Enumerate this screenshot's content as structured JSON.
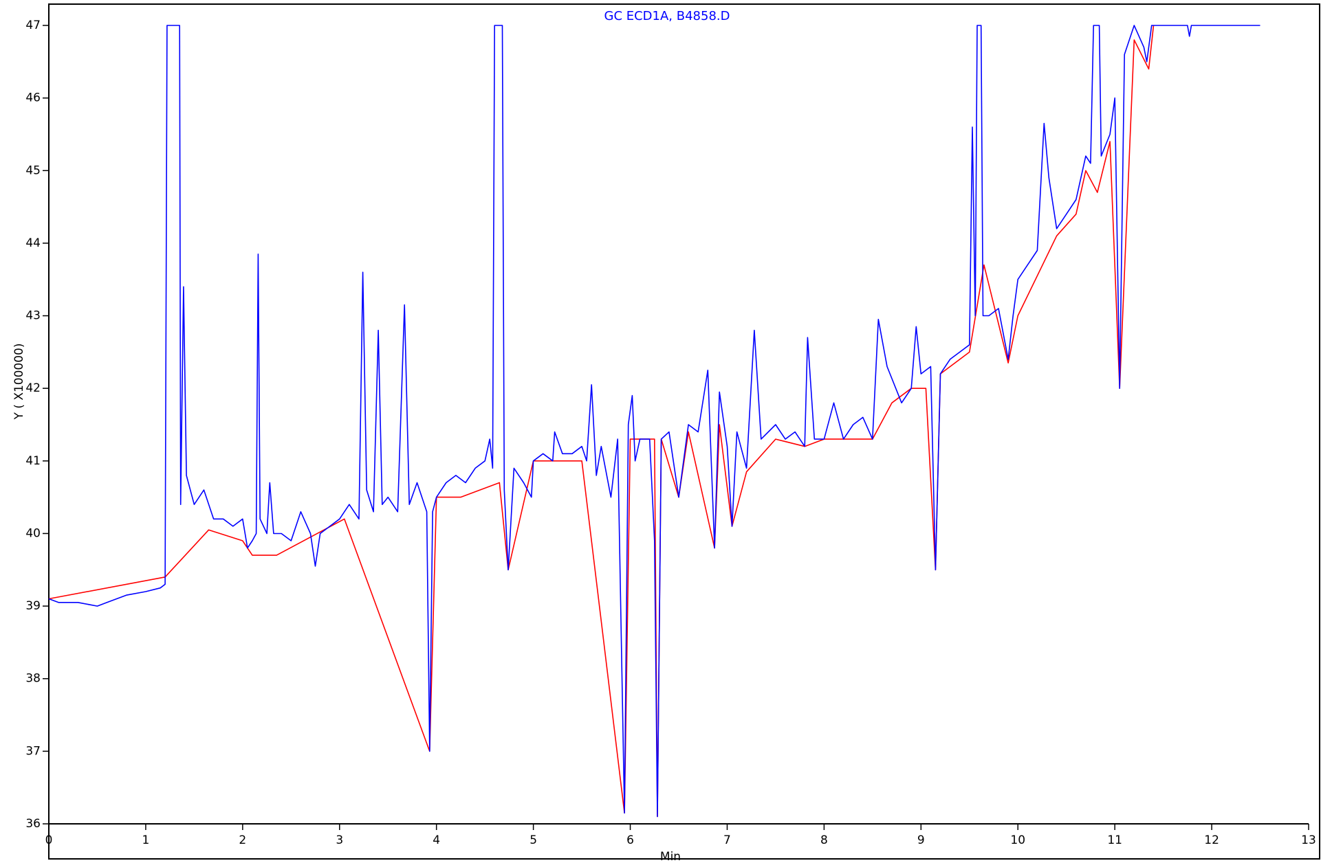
{
  "chart_data": {
    "type": "line",
    "title": "GC ECD1A, B4858.D",
    "x_label": "Min",
    "y_label": "Y ( X100000)",
    "xlim": [
      0,
      13
    ],
    "ylim": [
      36,
      47
    ],
    "xticks": [
      0,
      1,
      2,
      3,
      4,
      5,
      6,
      7,
      8,
      9,
      10,
      11,
      12,
      13
    ],
    "yticks": [
      36,
      37,
      38,
      39,
      40,
      41,
      42,
      43,
      44,
      45,
      46,
      47
    ],
    "series": [
      {
        "color": "#ff0000",
        "x": [
          0,
          1.2,
          1.65,
          2.0,
          2.1,
          2.35,
          3.05,
          3.93,
          4.0,
          4.25,
          4.65,
          4.74,
          5.0,
          5.5,
          5.94,
          6.0,
          6.25,
          6.28,
          6.32,
          6.5,
          6.6,
          6.87,
          6.92,
          7.05,
          7.2,
          7.5,
          7.8,
          8.0,
          8.5,
          8.7,
          8.9,
          9.05,
          9.15,
          9.2,
          9.5,
          9.65,
          9.9,
          10.0,
          10.4,
          10.6,
          10.7,
          10.82,
          10.95,
          11.05,
          11.2,
          11.35,
          11.4
        ],
        "values": [
          39.1,
          39.4,
          40.05,
          39.9,
          39.7,
          39.7,
          40.2,
          37.0,
          40.5,
          40.5,
          40.7,
          39.5,
          41.0,
          41.0,
          36.15,
          41.3,
          41.3,
          36.1,
          41.3,
          40.5,
          41.4,
          39.8,
          41.5,
          40.1,
          40.85,
          41.3,
          41.2,
          41.3,
          41.3,
          41.8,
          42.0,
          42.0,
          39.5,
          42.2,
          42.5,
          43.7,
          42.35,
          43.0,
          44.1,
          44.4,
          45.0,
          44.7,
          45.4,
          42.0,
          46.8,
          46.4,
          47
        ]
      },
      {
        "color": "#0000ff",
        "x": [
          0,
          0.1,
          0.3,
          0.5,
          0.6,
          0.8,
          1.0,
          1.15,
          1.2,
          1.22,
          1.35,
          1.36,
          1.39,
          1.42,
          1.5,
          1.6,
          1.7,
          1.8,
          1.9,
          2.0,
          2.05,
          2.1,
          2.14,
          2.16,
          2.18,
          2.25,
          2.28,
          2.32,
          2.4,
          2.5,
          2.6,
          2.7,
          2.75,
          2.8,
          2.9,
          3.0,
          3.1,
          3.2,
          3.24,
          3.28,
          3.35,
          3.4,
          3.44,
          3.5,
          3.6,
          3.67,
          3.72,
          3.8,
          3.9,
          3.93,
          3.96,
          4.0,
          4.1,
          4.2,
          4.3,
          4.4,
          4.5,
          4.55,
          4.58,
          4.6,
          4.68,
          4.7,
          4.74,
          4.8,
          4.9,
          4.98,
          5.0,
          5.1,
          5.2,
          5.22,
          5.3,
          5.4,
          5.5,
          5.55,
          5.6,
          5.65,
          5.7,
          5.8,
          5.87,
          5.94,
          5.98,
          6.02,
          6.05,
          6.1,
          6.2,
          6.25,
          6.28,
          6.32,
          6.4,
          6.5,
          6.6,
          6.7,
          6.8,
          6.87,
          6.92,
          7.0,
          7.05,
          7.1,
          7.2,
          7.28,
          7.35,
          7.5,
          7.6,
          7.7,
          7.8,
          7.83,
          7.9,
          8.0,
          8.1,
          8.2,
          8.3,
          8.4,
          8.5,
          8.56,
          8.65,
          8.8,
          8.9,
          8.95,
          9.0,
          9.1,
          9.15,
          9.2,
          9.3,
          9.4,
          9.5,
          9.53,
          9.56,
          9.58,
          9.62,
          9.64,
          9.7,
          9.8,
          9.9,
          9.95,
          10.0,
          10.1,
          10.2,
          10.27,
          10.32,
          10.4,
          10.5,
          10.6,
          10.7,
          10.75,
          10.78,
          10.84,
          10.86,
          10.95,
          11.0,
          11.05,
          11.1,
          11.2,
          11.3,
          11.33,
          11.38,
          11.75,
          11.77,
          11.79,
          12.5
        ],
        "values": [
          39.1,
          39.05,
          39.05,
          39.0,
          39.05,
          39.15,
          39.2,
          39.25,
          39.3,
          47,
          47,
          40.4,
          43.4,
          40.8,
          40.4,
          40.6,
          40.2,
          40.2,
          40.1,
          40.2,
          39.8,
          39.9,
          40.0,
          43.85,
          40.2,
          40.0,
          40.7,
          40.0,
          40.0,
          39.9,
          40.3,
          40.0,
          39.55,
          40.0,
          40.1,
          40.2,
          40.4,
          40.2,
          43.6,
          40.6,
          40.3,
          42.8,
          40.4,
          40.5,
          40.3,
          43.15,
          40.4,
          40.7,
          40.3,
          37.0,
          40.3,
          40.5,
          40.7,
          40.8,
          40.7,
          40.9,
          41.0,
          41.3,
          40.9,
          47,
          47,
          40.6,
          39.5,
          40.9,
          40.7,
          40.5,
          41.0,
          41.1,
          41.0,
          41.4,
          41.1,
          41.1,
          41.2,
          41.0,
          42.05,
          40.8,
          41.2,
          40.5,
          41.3,
          36.15,
          41.5,
          41.9,
          41.0,
          41.3,
          41.3,
          39.9,
          36.1,
          41.3,
          41.4,
          40.5,
          41.5,
          41.4,
          42.25,
          39.8,
          41.95,
          41.2,
          40.1,
          41.4,
          40.9,
          42.8,
          41.3,
          41.5,
          41.3,
          41.4,
          41.2,
          42.7,
          41.3,
          41.3,
          41.8,
          41.3,
          41.5,
          41.6,
          41.3,
          42.95,
          42.3,
          41.8,
          42.0,
          42.85,
          42.2,
          42.3,
          39.5,
          42.2,
          42.4,
          42.5,
          42.6,
          45.6,
          43.0,
          47,
          47,
          43.0,
          43.0,
          43.1,
          42.4,
          43.0,
          43.5,
          43.7,
          43.9,
          45.65,
          44.9,
          44.2,
          44.4,
          44.6,
          45.2,
          45.1,
          47,
          47,
          45.2,
          45.5,
          46.0,
          42.0,
          46.6,
          47.0,
          46.7,
          46.5,
          47,
          47,
          46.85,
          47,
          47
        ]
      }
    ]
  }
}
